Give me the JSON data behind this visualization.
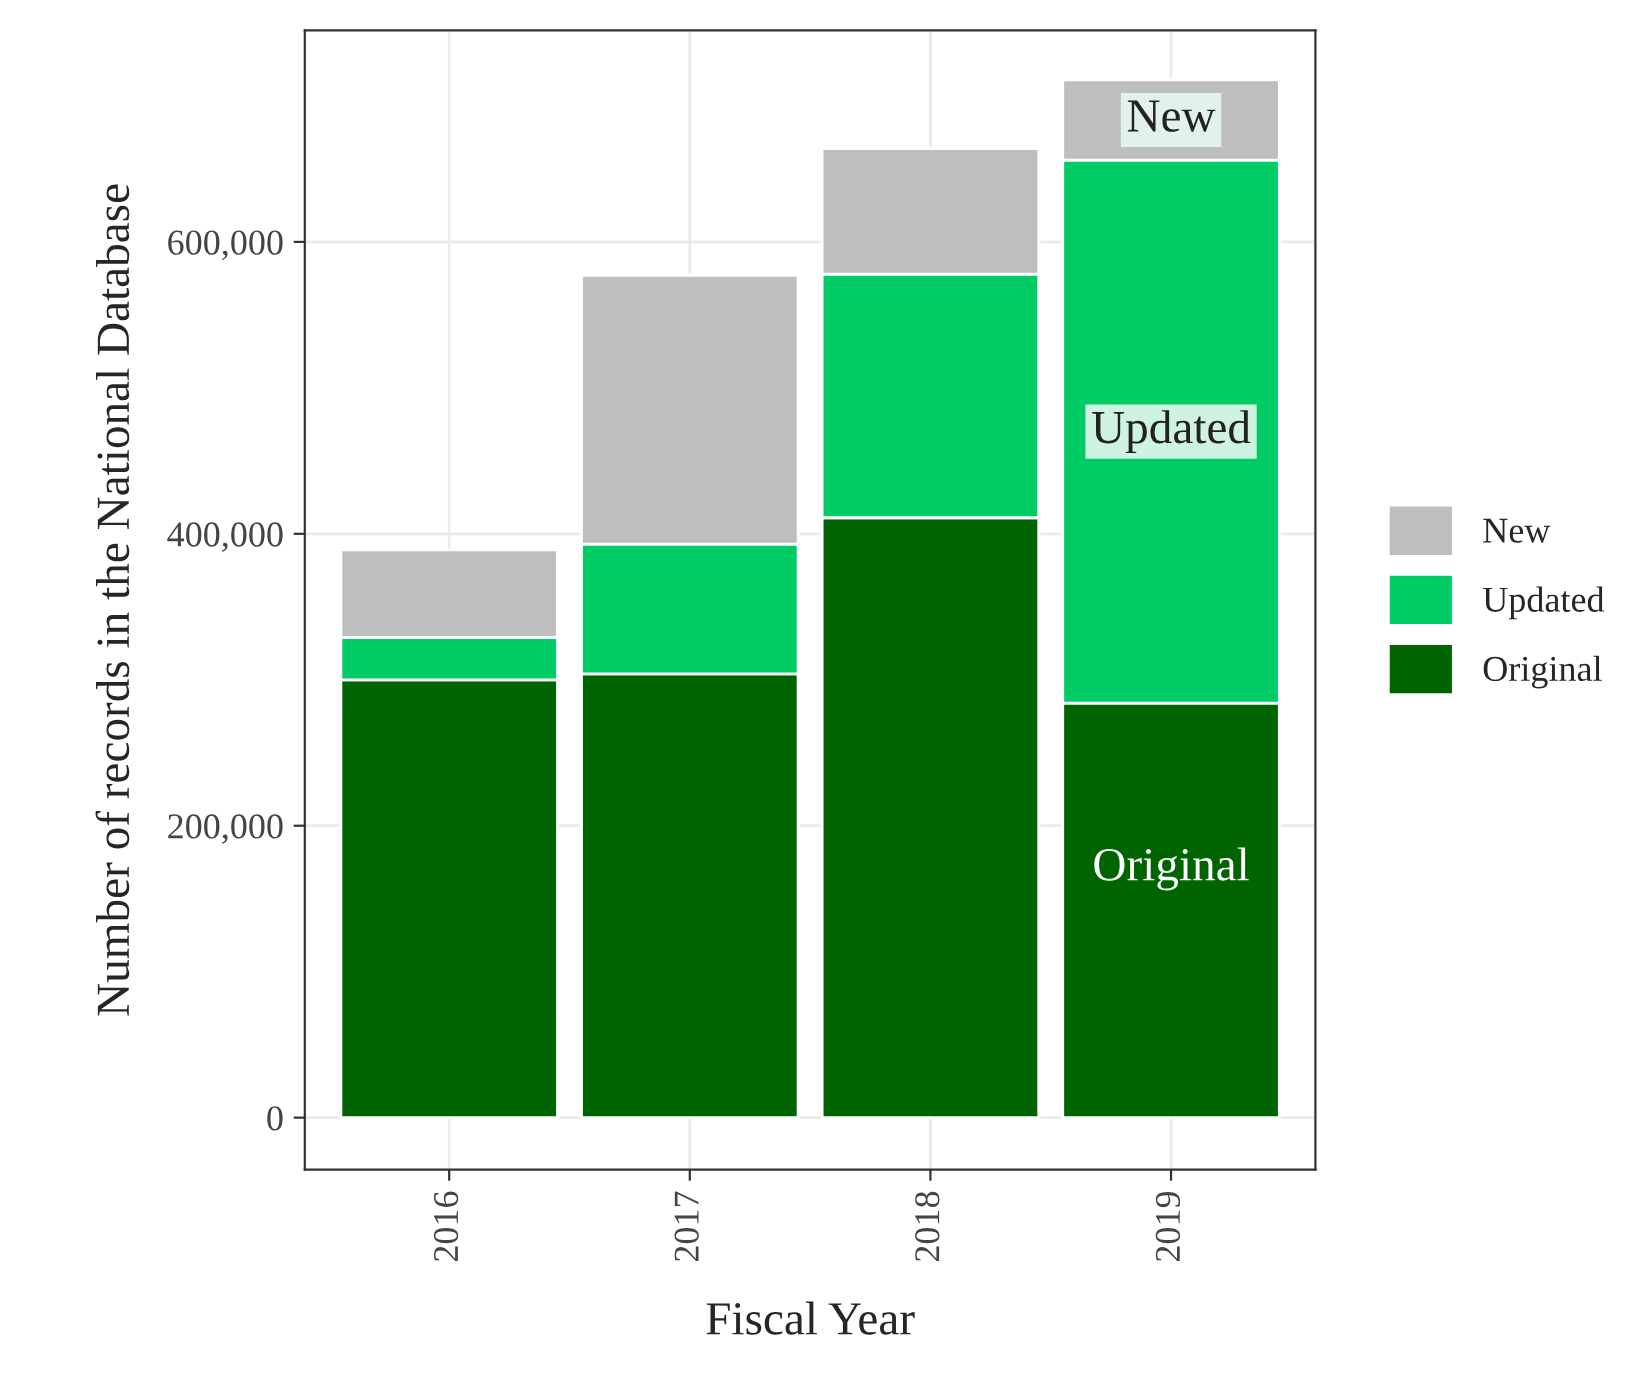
{
  "chart_data": {
    "type": "bar",
    "stacked": true,
    "xlabel": "Fiscal Year",
    "ylabel": "Number of records in the National Database",
    "categories": [
      "2016",
      "2017",
      "2018",
      "2019"
    ],
    "series": [
      {
        "name": "Original",
        "color": "#006400",
        "values": [
          300000,
          304000,
          411000,
          284000
        ]
      },
      {
        "name": "Updated",
        "color": "#00cc66",
        "values": [
          29000,
          89000,
          167000,
          372000
        ]
      },
      {
        "name": "New",
        "color": "#bebebe",
        "values": [
          60000,
          184000,
          86000,
          55000
        ]
      }
    ],
    "ylim": [
      -35600,
      745000
    ],
    "yticks": [
      {
        "value": 0,
        "label": "0"
      },
      {
        "value": 200000,
        "label": "200,000"
      },
      {
        "value": 400000,
        "label": "400,000"
      },
      {
        "value": 600000,
        "label": "600,000"
      }
    ],
    "annotations": [
      "Original",
      "Updated",
      "New"
    ],
    "grid": true,
    "legend": "right"
  }
}
